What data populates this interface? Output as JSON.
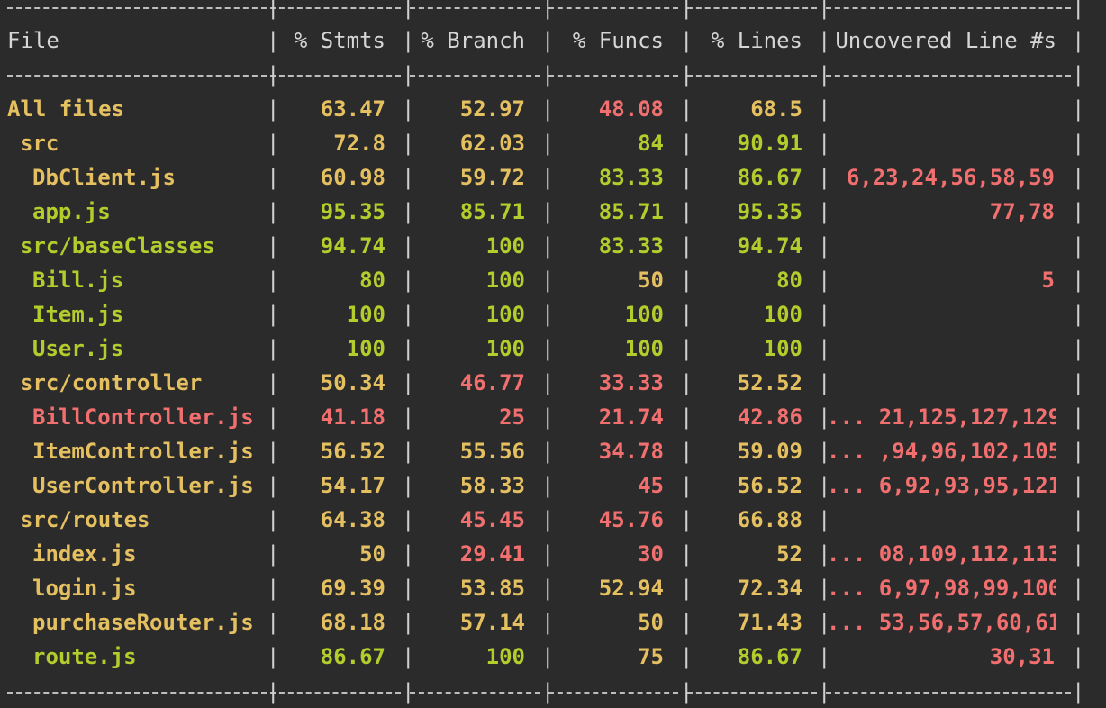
{
  "colors": {
    "background": "#2b2b2b",
    "high": "#b4cc2c",
    "medium": "#e5c061",
    "low": "#f16f6f",
    "border": "#d0d0d0"
  },
  "columns": [
    "File",
    "% Stmts",
    "% Branch",
    "% Funcs",
    "% Lines",
    "Uncovered Line #s"
  ],
  "rows": [
    {
      "name": "All files",
      "indent": 0,
      "level": "medium",
      "stmts": "63.47",
      "stmts_level": "medium",
      "branch": "52.97",
      "branch_level": "medium",
      "funcs": "48.08",
      "funcs_level": "low",
      "lines": "68.5",
      "lines_level": "medium",
      "uncovered": ""
    },
    {
      "name": "src",
      "indent": 1,
      "level": "medium",
      "stmts": "72.8",
      "stmts_level": "medium",
      "branch": "62.03",
      "branch_level": "medium",
      "funcs": "84",
      "funcs_level": "high",
      "lines": "90.91",
      "lines_level": "high",
      "uncovered": ""
    },
    {
      "name": "DbClient.js",
      "indent": 2,
      "level": "medium",
      "stmts": "60.98",
      "stmts_level": "medium",
      "branch": "59.72",
      "branch_level": "medium",
      "funcs": "83.33",
      "funcs_level": "high",
      "lines": "86.67",
      "lines_level": "high",
      "uncovered": "6,23,24,56,58,59"
    },
    {
      "name": "app.js",
      "indent": 2,
      "level": "high",
      "stmts": "95.35",
      "stmts_level": "high",
      "branch": "85.71",
      "branch_level": "high",
      "funcs": "85.71",
      "funcs_level": "high",
      "lines": "95.35",
      "lines_level": "high",
      "uncovered": "77,78"
    },
    {
      "name": "src/baseClasses",
      "indent": 1,
      "level": "high",
      "stmts": "94.74",
      "stmts_level": "high",
      "branch": "100",
      "branch_level": "high",
      "funcs": "83.33",
      "funcs_level": "high",
      "lines": "94.74",
      "lines_level": "high",
      "uncovered": ""
    },
    {
      "name": "Bill.js",
      "indent": 2,
      "level": "high",
      "stmts": "80",
      "stmts_level": "high",
      "branch": "100",
      "branch_level": "high",
      "funcs": "50",
      "funcs_level": "medium",
      "lines": "80",
      "lines_level": "high",
      "uncovered": "5"
    },
    {
      "name": "Item.js",
      "indent": 2,
      "level": "high",
      "stmts": "100",
      "stmts_level": "high",
      "branch": "100",
      "branch_level": "high",
      "funcs": "100",
      "funcs_level": "high",
      "lines": "100",
      "lines_level": "high",
      "uncovered": ""
    },
    {
      "name": "User.js",
      "indent": 2,
      "level": "high",
      "stmts": "100",
      "stmts_level": "high",
      "branch": "100",
      "branch_level": "high",
      "funcs": "100",
      "funcs_level": "high",
      "lines": "100",
      "lines_level": "high",
      "uncovered": ""
    },
    {
      "name": "src/controller",
      "indent": 1,
      "level": "medium",
      "stmts": "50.34",
      "stmts_level": "medium",
      "branch": "46.77",
      "branch_level": "low",
      "funcs": "33.33",
      "funcs_level": "low",
      "lines": "52.52",
      "lines_level": "medium",
      "uncovered": ""
    },
    {
      "name": "BillController.js",
      "indent": 2,
      "level": "low",
      "stmts": "41.18",
      "stmts_level": "low",
      "branch": "25",
      "branch_level": "low",
      "funcs": "21.74",
      "funcs_level": "low",
      "lines": "42.86",
      "lines_level": "low",
      "uncovered": "... 21,125,127,129"
    },
    {
      "name": "ItemController.js",
      "indent": 2,
      "level": "medium",
      "stmts": "56.52",
      "stmts_level": "medium",
      "branch": "55.56",
      "branch_level": "medium",
      "funcs": "34.78",
      "funcs_level": "low",
      "lines": "59.09",
      "lines_level": "medium",
      "uncovered": "... ,94,96,102,105"
    },
    {
      "name": "UserController.js",
      "indent": 2,
      "level": "medium",
      "stmts": "54.17",
      "stmts_level": "medium",
      "branch": "58.33",
      "branch_level": "medium",
      "funcs": "45",
      "funcs_level": "low",
      "lines": "56.52",
      "lines_level": "medium",
      "uncovered": "... 6,92,93,95,121"
    },
    {
      "name": "src/routes",
      "indent": 1,
      "level": "medium",
      "stmts": "64.38",
      "stmts_level": "medium",
      "branch": "45.45",
      "branch_level": "low",
      "funcs": "45.76",
      "funcs_level": "low",
      "lines": "66.88",
      "lines_level": "medium",
      "uncovered": ""
    },
    {
      "name": "index.js",
      "indent": 2,
      "level": "medium",
      "stmts": "50",
      "stmts_level": "medium",
      "branch": "29.41",
      "branch_level": "low",
      "funcs": "30",
      "funcs_level": "low",
      "lines": "52",
      "lines_level": "medium",
      "uncovered": "... 08,109,112,113"
    },
    {
      "name": "login.js",
      "indent": 2,
      "level": "medium",
      "stmts": "69.39",
      "stmts_level": "medium",
      "branch": "53.85",
      "branch_level": "medium",
      "funcs": "52.94",
      "funcs_level": "medium",
      "lines": "72.34",
      "lines_level": "medium",
      "uncovered": "... 6,97,98,99,100"
    },
    {
      "name": "purchaseRouter.js",
      "indent": 2,
      "level": "medium",
      "stmts": "68.18",
      "stmts_level": "medium",
      "branch": "57.14",
      "branch_level": "medium",
      "funcs": "50",
      "funcs_level": "medium",
      "lines": "71.43",
      "lines_level": "medium",
      "uncovered": "... 53,56,57,60,61"
    },
    {
      "name": "route.js",
      "indent": 2,
      "level": "high",
      "stmts": "86.67",
      "stmts_level": "high",
      "branch": "100",
      "branch_level": "high",
      "funcs": "75",
      "funcs_level": "medium",
      "lines": "86.67",
      "lines_level": "high",
      "uncovered": "30,31"
    }
  ]
}
